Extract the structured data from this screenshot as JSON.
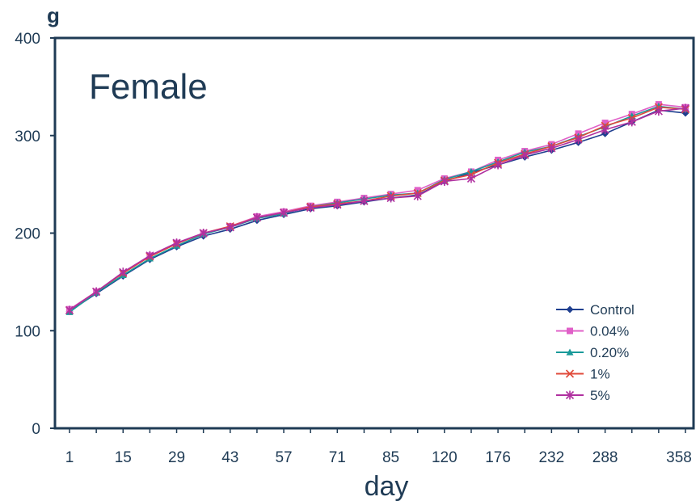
{
  "chart_data": {
    "type": "line",
    "title": "Female",
    "ylabel": "g",
    "xlabel": "day",
    "ylim": [
      0,
      400
    ],
    "yticks": [
      0,
      100,
      200,
      300,
      400
    ],
    "x_tick_labels": [
      "1",
      "15",
      "29",
      "43",
      "57",
      "71",
      "85",
      "120",
      "176",
      "232",
      "288",
      "358"
    ],
    "legend_position": "bottom-right",
    "grid": false,
    "series": [
      {
        "name": "Control",
        "color": "#1f3f8f",
        "marker": "diamond",
        "values": [
          120,
          138,
          156,
          173,
          186,
          197,
          204,
          213,
          219,
          225,
          228,
          232,
          236,
          239,
          253,
          262,
          270,
          278,
          285,
          293,
          302,
          314,
          326,
          323
        ]
      },
      {
        "name": "0.04%",
        "color": "#e060c8",
        "marker": "square",
        "values": [
          122,
          140,
          159,
          177,
          190,
          200,
          207,
          217,
          222,
          228,
          232,
          236,
          240,
          244,
          256,
          263,
          275,
          284,
          291,
          302,
          313,
          322,
          332,
          329
        ]
      },
      {
        "name": "0.20%",
        "color": "#1a9a9a",
        "marker": "triangle",
        "values": [
          119,
          139,
          157,
          174,
          187,
          199,
          206,
          215,
          220,
          227,
          231,
          235,
          239,
          241,
          255,
          263,
          273,
          283,
          289,
          299,
          309,
          320,
          330,
          327
        ]
      },
      {
        "name": "1%",
        "color": "#e04a3a",
        "marker": "cross",
        "values": [
          121,
          140,
          159,
          176,
          189,
          200,
          207,
          216,
          221,
          227,
          230,
          233,
          238,
          241,
          254,
          260,
          272,
          281,
          289,
          298,
          310,
          318,
          329,
          327
        ]
      },
      {
        "name": "5%",
        "color": "#b030a0",
        "marker": "asterisk",
        "values": [
          121,
          140,
          160,
          177,
          190,
          200,
          206,
          216,
          221,
          226,
          229,
          233,
          236,
          238,
          253,
          256,
          270,
          280,
          287,
          296,
          306,
          314,
          325,
          328
        ]
      }
    ]
  }
}
